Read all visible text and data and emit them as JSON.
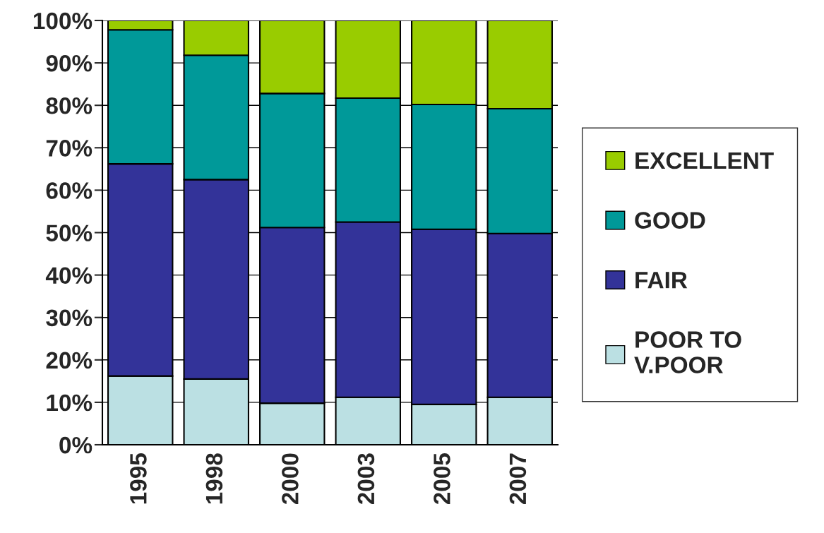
{
  "chart_data": {
    "type": "bar",
    "stacked": true,
    "categories": [
      "1995",
      "1998",
      "2000",
      "2003",
      "2005",
      "2007"
    ],
    "series": [
      {
        "name": "POOR TO\nV.POOR",
        "color": "#bbe0e3",
        "values": [
          16.2,
          15.5,
          9.8,
          11.2,
          9.5,
          11.2
        ]
      },
      {
        "name": "FAIR",
        "color": "#333399",
        "values": [
          50.0,
          47.0,
          41.4,
          41.3,
          41.3,
          38.6
        ]
      },
      {
        "name": "GOOD",
        "color": "#009999",
        "values": [
          31.6,
          29.3,
          31.6,
          29.2,
          29.4,
          29.4
        ]
      },
      {
        "name": "EXCELLENT",
        "color": "#99cc00",
        "values": [
          2.2,
          8.2,
          17.2,
          18.3,
          19.8,
          20.8
        ]
      }
    ],
    "ylim": [
      0,
      100
    ],
    "yticks": [
      {
        "value": 0,
        "label": "0%"
      },
      {
        "value": 10,
        "label": "10%"
      },
      {
        "value": 20,
        "label": "20%"
      },
      {
        "value": 30,
        "label": "30%"
      },
      {
        "value": 40,
        "label": "40%"
      },
      {
        "value": 50,
        "label": "50%"
      },
      {
        "value": 60,
        "label": "60%"
      },
      {
        "value": 70,
        "label": "70%"
      },
      {
        "value": 80,
        "label": "80%"
      },
      {
        "value": 90,
        "label": "90%"
      },
      {
        "value": 100,
        "label": "100%"
      }
    ],
    "grid": "y",
    "legend": "right"
  }
}
